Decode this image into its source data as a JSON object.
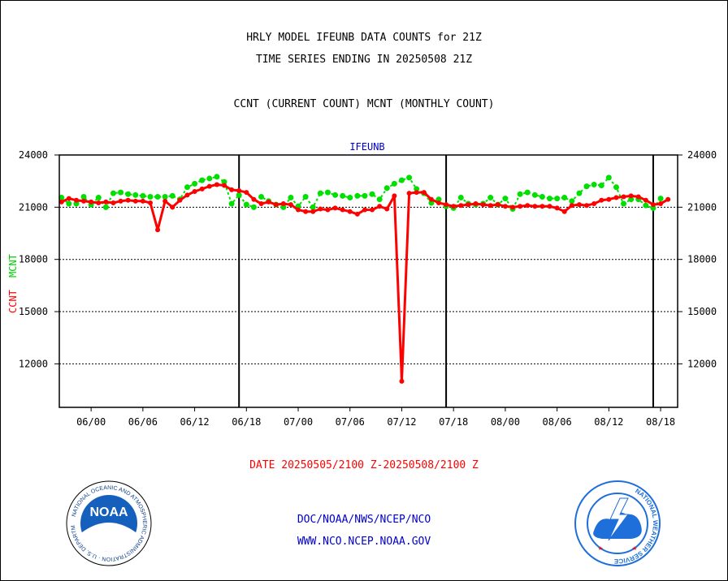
{
  "header": {
    "title_line1": "HRLY MODEL IFEUNB DATA COUNTS for 21Z",
    "title_line2": "TIME SERIES ENDING IN 20250508 21Z",
    "subtitle": "CCNT (CURRENT COUNT) MCNT (MONTHLY COUNT)"
  },
  "footer": {
    "date_range": "DATE 20250505/2100 Z-20250508/2100 Z",
    "org_path": "DOC/NOAA/NWS/NCEP/NCO",
    "website": "WWW.NCO.NCEP.NOAA.GOV"
  },
  "logos": {
    "noaa_label": "NOAA",
    "noaa_ring_text": "NATIONAL OCEANIC AND ATMOSPHERIC ADMINISTRATION · U.S. DEPARTMENT OF COMMERCE",
    "nws_ring_text": "NATIONAL WEATHER SERVICE"
  },
  "colors": {
    "ccnt": "#ff0000",
    "mcnt": "#00e000",
    "title_blue": "#0000cc",
    "noaa_blue": "#1560bd",
    "nws_blue": "#1e6fd9"
  },
  "chart_data": {
    "type": "line",
    "title": "IFEUNB",
    "ylabel_ccnt": "CCNT",
    "ylabel_mcnt": "MCNT",
    "ylim": [
      9500,
      24000
    ],
    "yticks": [
      12000,
      15000,
      18000,
      21000,
      24000
    ],
    "ytick_labels": [
      "12000",
      "15000",
      "18000",
      "21000",
      "24000"
    ],
    "xlim": [
      -2.3,
      81.3
    ],
    "xticks": [
      2,
      9,
      16,
      23,
      30,
      37,
      44,
      51,
      58,
      65,
      72,
      79
    ],
    "xtick_labels": [
      "06/00",
      "06/06",
      "06/12",
      "06/18",
      "07/00",
      "07/06",
      "07/12",
      "07/18",
      "08/00",
      "08/06",
      "08/12",
      "08/18"
    ],
    "day_boundaries": [
      22,
      50,
      78
    ],
    "grid_y": [
      21000,
      18000,
      15000,
      12000
    ],
    "series": [
      {
        "name": "CCNT",
        "color": "#ff0000",
        "values": [
          [
            -2,
            21300
          ],
          [
            -1,
            21500
          ],
          [
            0,
            21400
          ],
          [
            1,
            21350
          ],
          [
            2,
            21300
          ],
          [
            3,
            21250
          ],
          [
            4,
            21300
          ],
          [
            5,
            21250
          ],
          [
            6,
            21350
          ],
          [
            7,
            21400
          ],
          [
            8,
            21350
          ],
          [
            9,
            21350
          ],
          [
            10,
            21250
          ],
          [
            11,
            19700
          ],
          [
            12,
            21350
          ],
          [
            13,
            21000
          ],
          [
            14,
            21400
          ],
          [
            15,
            21700
          ],
          [
            16,
            21900
          ],
          [
            17,
            22050
          ],
          [
            18,
            22200
          ],
          [
            19,
            22300
          ],
          [
            20,
            22250
          ],
          [
            21,
            22000
          ],
          [
            22,
            21950
          ],
          [
            23,
            21850
          ],
          [
            24,
            21450
          ],
          [
            25,
            21200
          ],
          [
            26,
            21300
          ],
          [
            27,
            21150
          ],
          [
            28,
            21200
          ],
          [
            29,
            21150
          ],
          [
            30,
            20850
          ],
          [
            31,
            20750
          ],
          [
            32,
            20750
          ],
          [
            33,
            20900
          ],
          [
            34,
            20850
          ],
          [
            35,
            20950
          ],
          [
            36,
            20850
          ],
          [
            37,
            20750
          ],
          [
            38,
            20600
          ],
          [
            39,
            20850
          ],
          [
            40,
            20850
          ],
          [
            41,
            21050
          ],
          [
            42,
            20900
          ],
          [
            43,
            21650
          ],
          [
            44,
            11000
          ],
          [
            45,
            21800
          ],
          [
            46,
            21850
          ],
          [
            47,
            21850
          ],
          [
            48,
            21450
          ],
          [
            49,
            21250
          ],
          [
            50,
            21150
          ],
          [
            51,
            21050
          ],
          [
            52,
            21100
          ],
          [
            53,
            21150
          ],
          [
            54,
            21200
          ],
          [
            55,
            21150
          ],
          [
            56,
            21100
          ],
          [
            57,
            21150
          ],
          [
            58,
            21050
          ],
          [
            59,
            21000
          ],
          [
            60,
            21050
          ],
          [
            61,
            21100
          ],
          [
            62,
            21050
          ],
          [
            63,
            21050
          ],
          [
            64,
            21050
          ],
          [
            65,
            20950
          ],
          [
            66,
            20750
          ],
          [
            67,
            21100
          ],
          [
            68,
            21150
          ],
          [
            69,
            21100
          ],
          [
            70,
            21200
          ],
          [
            71,
            21400
          ],
          [
            72,
            21450
          ],
          [
            73,
            21550
          ],
          [
            74,
            21600
          ],
          [
            75,
            21650
          ],
          [
            76,
            21600
          ],
          [
            77,
            21400
          ],
          [
            78,
            21150
          ],
          [
            79,
            21200
          ],
          [
            80,
            21450
          ]
        ]
      },
      {
        "name": "MCNT",
        "color": "#00e000",
        "values": [
          [
            -2,
            21550
          ],
          [
            -1,
            21200
          ],
          [
            0,
            21200
          ],
          [
            1,
            21600
          ],
          [
            2,
            21150
          ],
          [
            3,
            21550
          ],
          [
            4,
            21000
          ],
          [
            5,
            21800
          ],
          [
            6,
            21850
          ],
          [
            7,
            21750
          ],
          [
            8,
            21700
          ],
          [
            9,
            21650
          ],
          [
            10,
            21600
          ],
          [
            11,
            21600
          ],
          [
            12,
            21600
          ],
          [
            13,
            21650
          ],
          [
            14,
            21450
          ],
          [
            15,
            22150
          ],
          [
            16,
            22350
          ],
          [
            17,
            22550
          ],
          [
            18,
            22650
          ],
          [
            19,
            22750
          ],
          [
            20,
            22450
          ],
          [
            21,
            21200
          ],
          [
            22,
            21700
          ],
          [
            23,
            21150
          ],
          [
            24,
            21000
          ],
          [
            25,
            21600
          ],
          [
            26,
            21350
          ],
          [
            27,
            21150
          ],
          [
            28,
            21000
          ],
          [
            29,
            21550
          ],
          [
            30,
            21050
          ],
          [
            31,
            21600
          ],
          [
            32,
            21000
          ],
          [
            33,
            21800
          ],
          [
            34,
            21850
          ],
          [
            35,
            21700
          ],
          [
            36,
            21650
          ],
          [
            37,
            21550
          ],
          [
            38,
            21650
          ],
          [
            39,
            21650
          ],
          [
            40,
            21750
          ],
          [
            41,
            21450
          ],
          [
            42,
            22100
          ],
          [
            43,
            22350
          ],
          [
            44,
            22550
          ],
          [
            45,
            22700
          ],
          [
            46,
            22050
          ],
          [
            47,
            21800
          ],
          [
            48,
            21250
          ],
          [
            49,
            21450
          ],
          [
            50,
            21050
          ],
          [
            51,
            20950
          ],
          [
            52,
            21550
          ],
          [
            53,
            21200
          ],
          [
            54,
            21150
          ],
          [
            55,
            21200
          ],
          [
            56,
            21550
          ],
          [
            57,
            21150
          ],
          [
            58,
            21500
          ],
          [
            59,
            20900
          ],
          [
            60,
            21750
          ],
          [
            61,
            21850
          ],
          [
            62,
            21700
          ],
          [
            63,
            21600
          ],
          [
            64,
            21500
          ],
          [
            65,
            21500
          ],
          [
            66,
            21550
          ],
          [
            67,
            21350
          ],
          [
            68,
            21800
          ],
          [
            69,
            22200
          ],
          [
            70,
            22300
          ],
          [
            71,
            22250
          ],
          [
            72,
            22700
          ],
          [
            73,
            22150
          ],
          [
            74,
            21200
          ],
          [
            75,
            21450
          ],
          [
            76,
            21450
          ],
          [
            77,
            21100
          ],
          [
            78,
            20950
          ],
          [
            79,
            21500
          ]
        ]
      }
    ]
  }
}
